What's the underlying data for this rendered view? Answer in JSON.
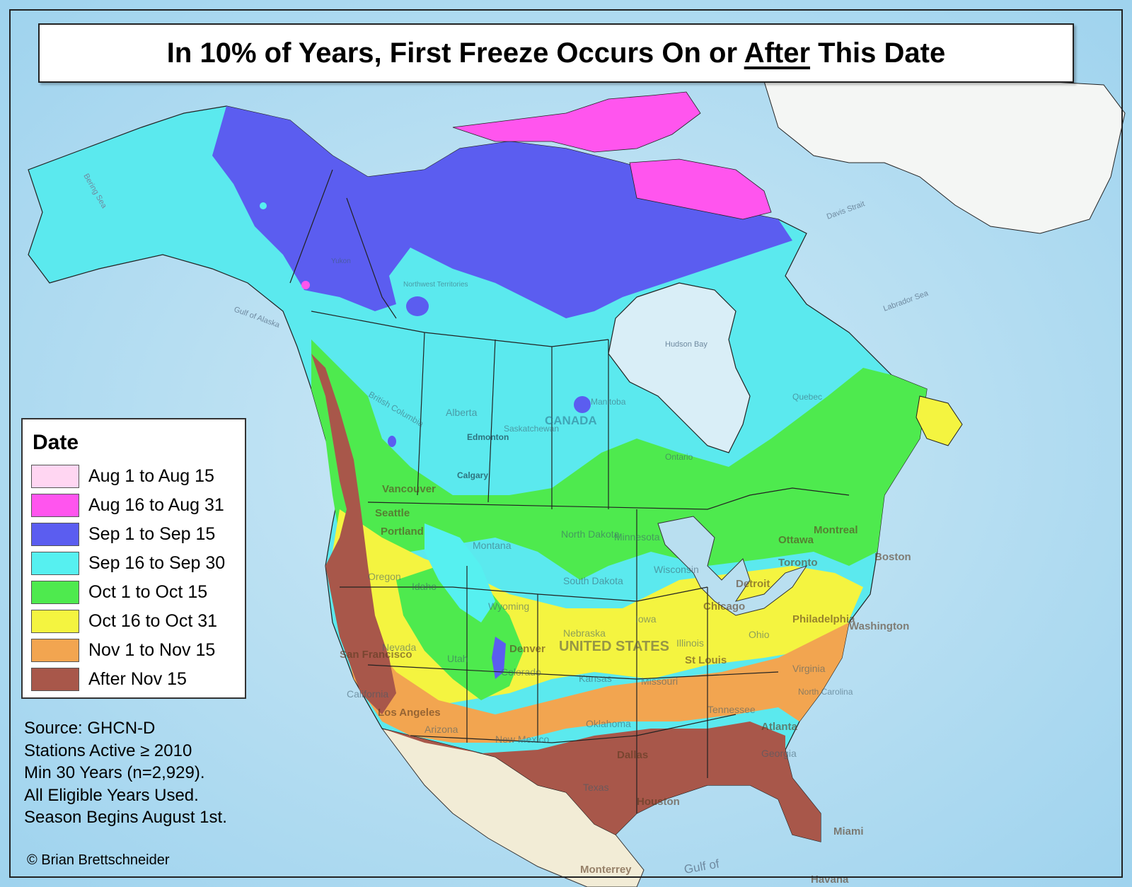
{
  "title": {
    "prefix": "In 10% of Years, First Freeze Occurs On or ",
    "emphasis": "After",
    "suffix": " This Date"
  },
  "legend": {
    "title": "Date",
    "items": [
      {
        "label": "Aug 1 to Aug 15",
        "color": "#ffd6f2"
      },
      {
        "label": "Aug 16 to Aug 31",
        "color": "#ff55ee"
      },
      {
        "label": "Sep 1 to Sep 15",
        "color": "#5b5df0"
      },
      {
        "label": "Sep 16 to Sep 30",
        "color": "#56f0f0"
      },
      {
        "label": "Oct 1 to Oct 15",
        "color": "#4eea4e"
      },
      {
        "label": "Oct 16 to Oct 31",
        "color": "#f4f440"
      },
      {
        "label": "Nov 1 to Nov 15",
        "color": "#f2a550"
      },
      {
        "label": "After Nov 15",
        "color": "#a8574a"
      }
    ]
  },
  "source_lines": [
    "Source: GHCN-D",
    "Stations Active ≥ 2010",
    "Min 30 Years (n=2,929).",
    "All Eligible Years Used.",
    "Season Begins August 1st."
  ],
  "credit": "© Brian Brettschneider",
  "map_labels": {
    "water": [
      "Bering Sea",
      "Gulf of Alaska",
      "Hudson Bay",
      "Labrador Sea",
      "Davis Strait",
      "Gulf of"
    ],
    "countries": [
      "CANADA",
      "UNITED STATES"
    ],
    "regions": [
      "Alberta",
      "Saskatchewan",
      "Manitoba",
      "Ontario",
      "Quebec",
      "British Columbia",
      "Montana",
      "North Dakota",
      "South Dakota",
      "Minnesota",
      "Wisconsin",
      "Wyoming",
      "Nebraska",
      "Iowa",
      "Illinois",
      "Missouri",
      "Ohio",
      "Idaho",
      "Oregon",
      "Nevada",
      "Utah",
      "Colorado",
      "Kansas",
      "Oklahoma",
      "Texas",
      "New Mexico",
      "Arizona",
      "California",
      "Tennessee",
      "Virginia",
      "North Carolina",
      "Georgia",
      "Yukon",
      "Northwest Territories"
    ],
    "cities": [
      "Edmonton",
      "Calgary",
      "Vancouver",
      "Seattle",
      "Portland",
      "San Francisco",
      "Los Angeles",
      "Denver",
      "Chicago",
      "St Louis",
      "Philadelphia",
      "Washington",
      "Boston",
      "Ottawa",
      "Montreal",
      "Toronto",
      "Detroit",
      "Dallas",
      "Houston",
      "Atlanta",
      "Miami",
      "Monterrey",
      "Havana"
    ]
  }
}
